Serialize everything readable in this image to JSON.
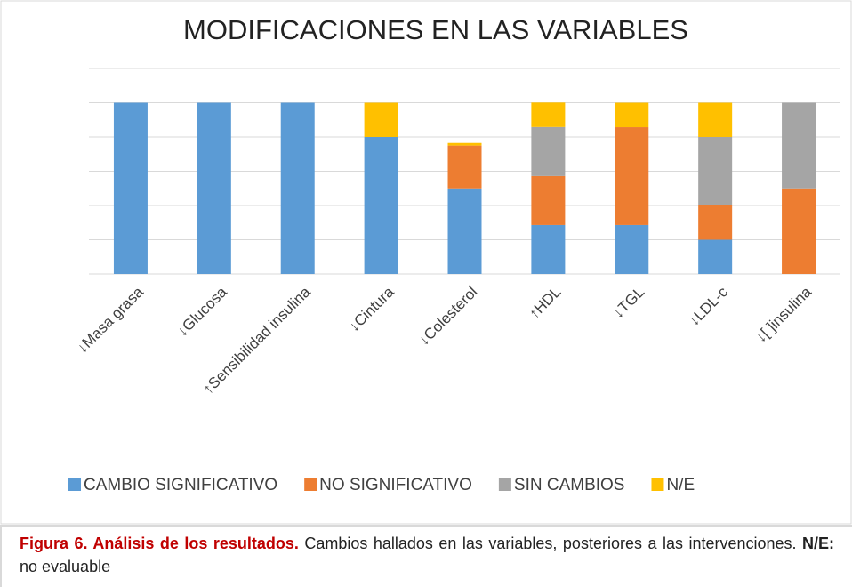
{
  "chart_data": {
    "type": "stacked_bar",
    "title": "MODIFICACIONES EN LAS VARIABLES",
    "categories": [
      "↓Masa grasa",
      "↓Glucosa",
      "↑Sensibilidad insulina",
      "↓Cintura",
      "↓Colesterol",
      "↑HDL",
      "↓TGL",
      "↓LDL-c",
      "↓[ ]insulina"
    ],
    "series": [
      {
        "name": "CAMBIO SIGNIFICATIVO",
        "color": "#5b9bd5",
        "values": [
          100,
          100,
          100,
          80,
          50,
          28.6,
          28.6,
          20,
          0
        ]
      },
      {
        "name": "NO SIGNIFICATIVO",
        "color": "#ed7d31",
        "values": [
          0,
          0,
          0,
          0,
          25,
          28.6,
          57.1,
          20,
          50
        ]
      },
      {
        "name": "SIN CAMBIOS",
        "color": "#a5a5a5",
        "values": [
          0,
          0,
          0,
          0,
          0,
          28.6,
          0,
          40,
          50
        ]
      },
      {
        "name": "N/E",
        "color": "#ffc000",
        "values": [
          0,
          0,
          0,
          20,
          1.5,
          14.3,
          14.3,
          20,
          0
        ]
      }
    ],
    "ylim": [
      0,
      120
    ],
    "yticks": [
      0,
      20,
      40,
      60,
      80,
      100,
      120
    ],
    "grid": true,
    "legend": "bottom"
  },
  "caption": {
    "label": "Figura 6. Análisis de los resultados.",
    "text": " Cambios hallados en las variables, posteriores a las intervenciones. ",
    "note_label": "N/E:",
    "note_text": " no evaluable"
  }
}
